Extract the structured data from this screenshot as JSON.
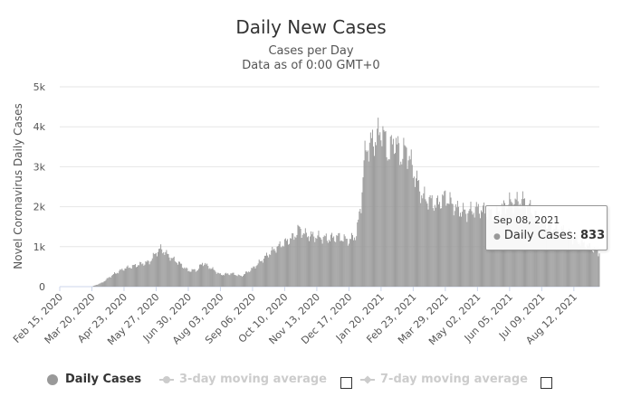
{
  "chart_data": {
    "type": "bar",
    "title": "Daily New Cases",
    "subtitle_lines": [
      "Cases per Day",
      "Data as of 0:00 GMT+0"
    ],
    "ylabel": "Novel Coronavirus Daily Cases",
    "ylim": [
      0,
      5000
    ],
    "y_ticks": [
      0,
      1000,
      2000,
      3000,
      4000,
      5000
    ],
    "y_tick_labels": [
      "0",
      "1k",
      "2k",
      "3k",
      "4k",
      "5k"
    ],
    "x_tick_labels": [
      "Feb 15, 2020",
      "Mar 20, 2020",
      "Apr 23, 2020",
      "May 27, 2020",
      "Jun 30, 2020",
      "Aug 03, 2020",
      "Sep 06, 2020",
      "Oct 10, 2020",
      "Nov 13, 2020",
      "Dec 17, 2020",
      "Jan 20, 2021",
      "Feb 23, 2021",
      "Mar 29, 2021",
      "May 02, 2021",
      "Jun 05, 2021",
      "Jul 09, 2021",
      "Aug 12, 2021"
    ],
    "date_range": [
      "Feb 15, 2020",
      "Sep 08, 2021"
    ],
    "grid": true,
    "color": "#999999",
    "series": [
      {
        "name": "Daily Cases",
        "anchors": [
          [
            "Feb 15, 2020",
            0
          ],
          [
            "Mar 20, 2020",
            0
          ],
          [
            "Mar 31, 2020",
            100
          ],
          [
            "Apr 10, 2020",
            280
          ],
          [
            "Apr 23, 2020",
            450
          ],
          [
            "May 10, 2020",
            560
          ],
          [
            "May 20, 2020",
            620
          ],
          [
            "May 27, 2020",
            850
          ],
          [
            "Jun 01, 2020",
            950
          ],
          [
            "Jun 12, 2020",
            720
          ],
          [
            "Jun 22, 2020",
            560
          ],
          [
            "Jun 30, 2020",
            400
          ],
          [
            "Jul 10, 2020",
            420
          ],
          [
            "Jul 15, 2020",
            600
          ],
          [
            "Jul 25, 2020",
            450
          ],
          [
            "Aug 03, 2020",
            300
          ],
          [
            "Aug 15, 2020",
            330
          ],
          [
            "Aug 25, 2020",
            260
          ],
          [
            "Sep 06, 2020",
            450
          ],
          [
            "Sep 20, 2020",
            750
          ],
          [
            "Sep 30, 2020",
            950
          ],
          [
            "Oct 10, 2020",
            1100
          ],
          [
            "Oct 20, 2020",
            1250
          ],
          [
            "Oct 25, 2020",
            1450
          ],
          [
            "Nov 01, 2020",
            1300
          ],
          [
            "Nov 13, 2020",
            1250
          ],
          [
            "Nov 25, 2020",
            1200
          ],
          [
            "Dec 05, 2020",
            1250
          ],
          [
            "Dec 17, 2020",
            1150
          ],
          [
            "Dec 25, 2020",
            1300
          ],
          [
            "Dec 30, 2020",
            2100
          ],
          [
            "Jan 02, 2021",
            3100
          ],
          [
            "Jan 05, 2021",
            3500
          ],
          [
            "Jan 15, 2021",
            3700
          ],
          [
            "Jan 21, 2021",
            3950
          ],
          [
            "Jan 28, 2021",
            3300
          ],
          [
            "Feb 03, 2021",
            3700
          ],
          [
            "Feb 10, 2021",
            3250
          ],
          [
            "Feb 16, 2021",
            3450
          ],
          [
            "Feb 23, 2021",
            2900
          ],
          [
            "Mar 05, 2021",
            2250
          ],
          [
            "Mar 20, 2021",
            2050
          ],
          [
            "Mar 29, 2021",
            2250
          ],
          [
            "Apr 10, 2021",
            1950
          ],
          [
            "Apr 20, 2021",
            1850
          ],
          [
            "May 02, 2021",
            1950
          ],
          [
            "May 20, 2021",
            1800
          ],
          [
            "Jun 05, 2021",
            2100
          ],
          [
            "Jun 20, 2021",
            2150
          ],
          [
            "Jul 05, 2021",
            1700
          ],
          [
            "Jul 20, 2021",
            1500
          ],
          [
            "Aug 01, 2021",
            1400
          ],
          [
            "Aug 12, 2021",
            1200
          ],
          [
            "Aug 25, 2021",
            1050
          ],
          [
            "Sep 08, 2021",
            833
          ]
        ]
      }
    ],
    "tooltip": {
      "date": "Sep 08, 2021",
      "series": "Daily Cases",
      "value": "833"
    }
  },
  "legend": {
    "daily_cases": "Daily Cases",
    "avg3": "3-day moving average",
    "avg7": "7-day moving average"
  }
}
